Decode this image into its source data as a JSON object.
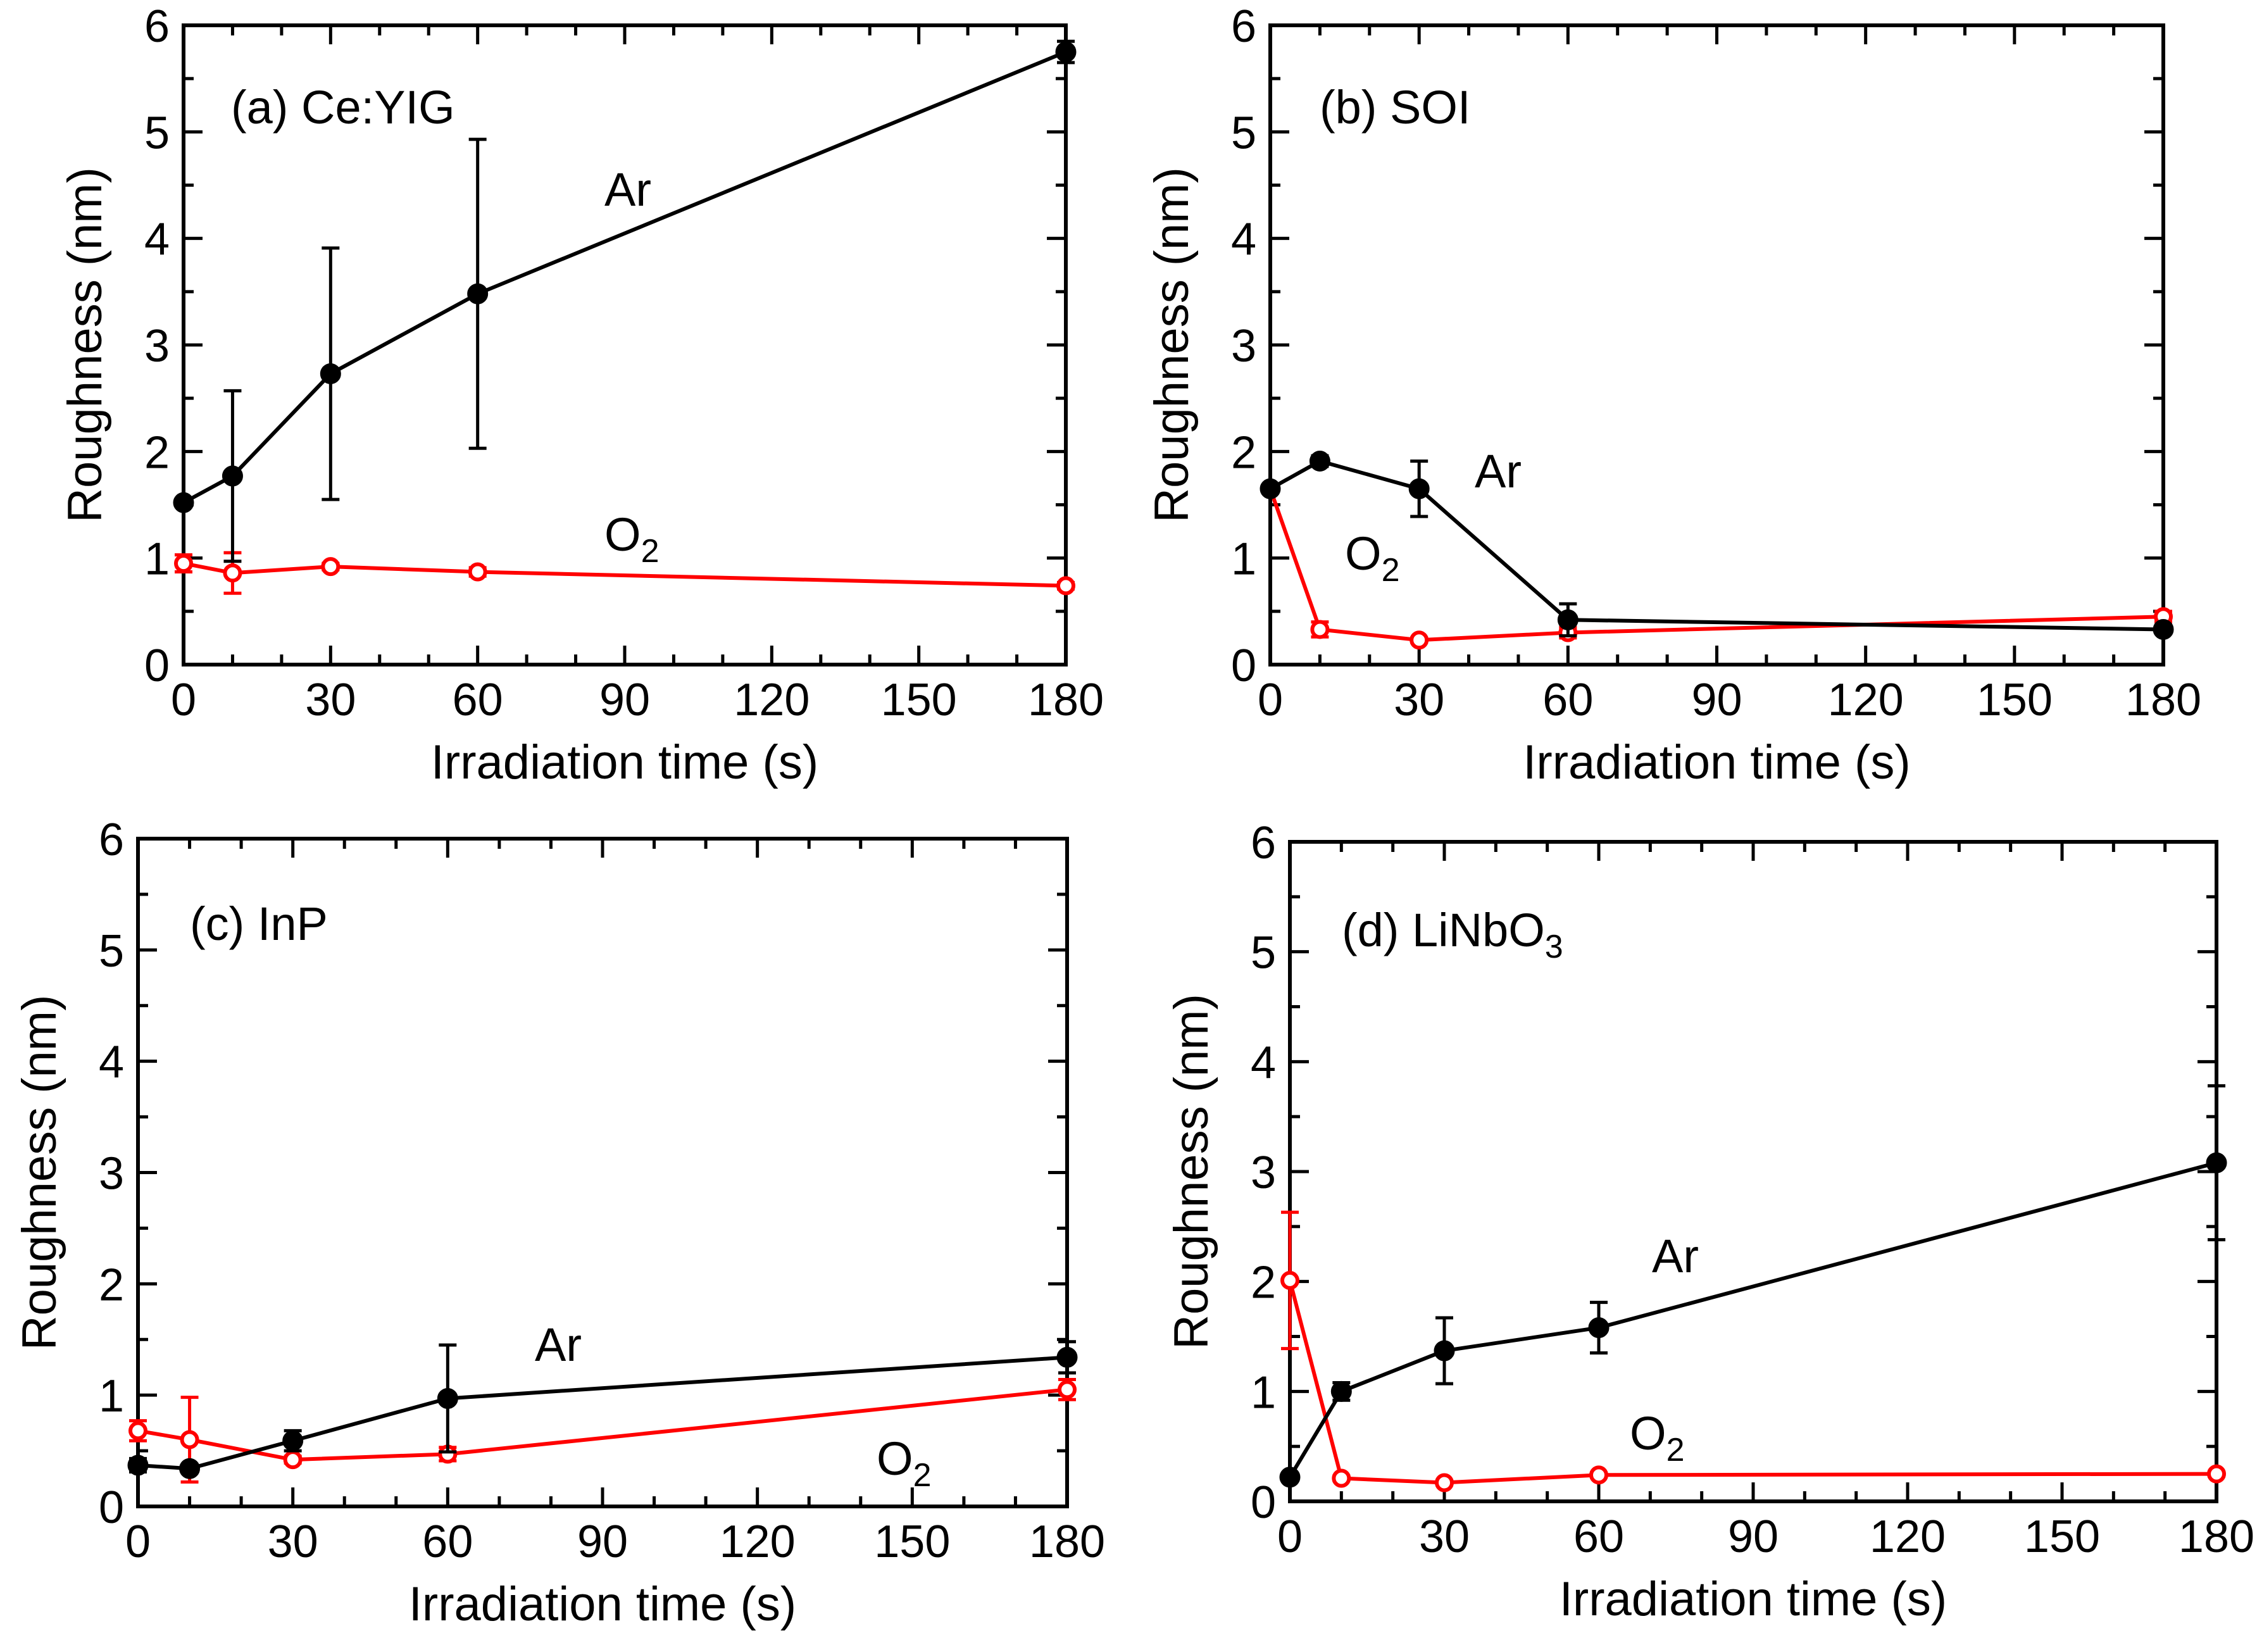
{
  "colors": {
    "Ar": "#000000",
    "O2": "#ff0000",
    "axis": "#000000"
  },
  "chart_data": [
    {
      "type": "line",
      "panel": "(a) Ce:YIG",
      "title": "(a) Ce:YIG",
      "xlabel": "Irradiation time (s)",
      "ylabel": "Roughness (nm)",
      "xlim": [
        0,
        180
      ],
      "ylim": [
        0,
        6
      ],
      "xticks": [
        "0",
        "30",
        "60",
        "90",
        "120",
        "150",
        "180"
      ],
      "yticks": [
        "0",
        "1",
        "2",
        "3",
        "4",
        "5",
        "6"
      ],
      "series": [
        {
          "name": "Ar",
          "label": "Ar",
          "marker": "filled",
          "x": [
            0,
            10,
            30,
            60,
            180
          ],
          "y": [
            1.52,
            1.77,
            2.73,
            3.48,
            5.75
          ],
          "err": [
            0,
            0.8,
            1.18,
            1.45,
            0.1
          ]
        },
        {
          "name": "O2",
          "label_base": "O",
          "label_sub": "2",
          "marker": "open",
          "x": [
            0,
            10,
            30,
            60,
            180
          ],
          "y": [
            0.95,
            0.86,
            0.92,
            0.87,
            0.74
          ],
          "err": [
            0.08,
            0.19,
            0.03,
            0.04,
            0.03
          ]
        }
      ]
    },
    {
      "type": "line",
      "panel": "(b) SOI",
      "title": "(b) SOI",
      "xlabel": "Irradiation time (s)",
      "ylabel": "Roughness (nm)",
      "xlim": [
        0,
        180
      ],
      "ylim": [
        0,
        6
      ],
      "xticks": [
        "0",
        "30",
        "60",
        "90",
        "120",
        "150",
        "180"
      ],
      "yticks": [
        "0",
        "1",
        "2",
        "3",
        "4",
        "5",
        "6"
      ],
      "series": [
        {
          "name": "Ar",
          "label": "Ar",
          "marker": "filled",
          "x": [
            0,
            10,
            30,
            60,
            180
          ],
          "y": [
            1.65,
            1.91,
            1.65,
            0.42,
            0.33
          ],
          "err": [
            0,
            0.05,
            0.26,
            0.15,
            0.03
          ]
        },
        {
          "name": "O2",
          "label_base": "O",
          "label_sub": "2",
          "marker": "open",
          "x": [
            0,
            10,
            30,
            60,
            180
          ],
          "y": [
            1.65,
            0.33,
            0.23,
            0.3,
            0.45
          ],
          "err": [
            0,
            0.07,
            0.02,
            0.05,
            0.05
          ]
        }
      ]
    },
    {
      "type": "line",
      "panel": "(c) InP",
      "title": "(c) InP",
      "xlabel": "Irradiation time (s)",
      "ylabel": "Roughness (nm)",
      "xlim": [
        0,
        180
      ],
      "ylim": [
        0,
        6
      ],
      "xticks": [
        "0",
        "30",
        "60",
        "90",
        "120",
        "150",
        "180"
      ],
      "yticks": [
        "0",
        "1",
        "2",
        "3",
        "4",
        "5",
        "6"
      ],
      "series": [
        {
          "name": "Ar",
          "label": "Ar",
          "marker": "filled",
          "x": [
            0,
            10,
            30,
            60,
            180
          ],
          "y": [
            0.37,
            0.34,
            0.59,
            0.97,
            1.34
          ],
          "err": [
            0.06,
            0.03,
            0.09,
            0.48,
            0.14
          ]
        },
        {
          "name": "O2",
          "label_base": "O",
          "label_sub": "2",
          "marker": "open",
          "x": [
            0,
            10,
            30,
            60,
            180
          ],
          "y": [
            0.68,
            0.6,
            0.42,
            0.47,
            1.05
          ],
          "err": [
            0.09,
            0.38,
            0.03,
            0.06,
            0.09
          ]
        }
      ]
    },
    {
      "type": "line",
      "panel": "(d) LiNbO3",
      "title_base": "(d) LiNbO",
      "title_sub": "3",
      "xlabel": "Irradiation time (s)",
      "ylabel": "Roughness (nm)",
      "xlim": [
        0,
        180
      ],
      "ylim": [
        0,
        6
      ],
      "xticks": [
        "0",
        "30",
        "60",
        "90",
        "120",
        "150",
        "180"
      ],
      "yticks": [
        "0",
        "1",
        "2",
        "3",
        "4",
        "5",
        "6"
      ],
      "series": [
        {
          "name": "Ar",
          "label": "Ar",
          "marker": "filled",
          "x": [
            0,
            10,
            30,
            60,
            180
          ],
          "y": [
            0.22,
            1.0,
            1.37,
            1.58,
            3.08
          ],
          "err": [
            0,
            0.08,
            0.3,
            0.23,
            0.7
          ]
        },
        {
          "name": "O2",
          "label_base": "O",
          "label_sub": "2",
          "marker": "open",
          "x": [
            0,
            10,
            30,
            60,
            180
          ],
          "y": [
            2.01,
            0.21,
            0.17,
            0.24,
            0.25
          ],
          "err": [
            0.62,
            0.02,
            0.02,
            0.02,
            0.02
          ]
        }
      ]
    }
  ]
}
